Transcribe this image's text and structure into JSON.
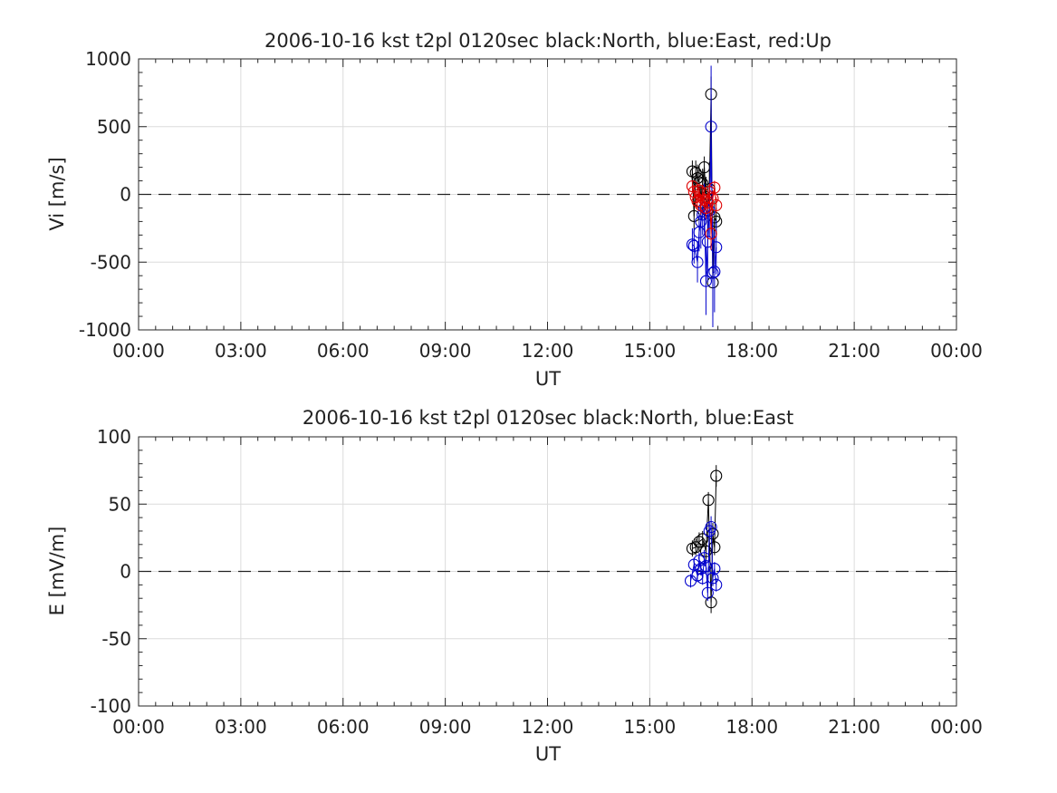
{
  "chart_data": [
    {
      "type": "scatter",
      "title": "2006-10-16 kst t2pl 0120sec black:North, blue:East, red:Up",
      "xlabel": "UT",
      "ylabel": "Vi [m/s]",
      "xlim": [
        0,
        24
      ],
      "ylim": [
        -1000,
        1000
      ],
      "x_ticks": [
        "00:00",
        "03:00",
        "06:00",
        "09:00",
        "12:00",
        "15:00",
        "18:00",
        "21:00",
        "00:00"
      ],
      "y_ticks": [
        "1000",
        "500",
        "0",
        "-500",
        "-1000"
      ],
      "y_tick_values": [
        1000,
        500,
        0,
        -500,
        -1000
      ],
      "grid": true,
      "zero_line": "dashed",
      "series": [
        {
          "color": "#000000",
          "x": [
            16.25,
            16.3,
            16.35,
            16.4,
            16.45,
            16.5,
            16.55,
            16.6,
            16.65,
            16.7,
            16.75,
            16.8,
            16.85,
            16.9,
            16.95
          ],
          "y": [
            170,
            -160,
            160,
            120,
            90,
            -60,
            80,
            200,
            -20,
            -120,
            40,
            740,
            -650,
            -170,
            -200
          ],
          "err": [
            80,
            100,
            90,
            100,
            120,
            130,
            110,
            80,
            150,
            180,
            200,
            130,
            250,
            120,
            100
          ]
        },
        {
          "color": "#0000cc",
          "x": [
            16.25,
            16.3,
            16.4,
            16.45,
            16.5,
            16.55,
            16.6,
            16.65,
            16.7,
            16.75,
            16.8,
            16.85,
            16.9,
            16.95
          ],
          "y": [
            -370,
            -380,
            -500,
            -280,
            -200,
            -150,
            -100,
            -640,
            -350,
            -120,
            500,
            -580,
            -570,
            -390
          ],
          "err": [
            120,
            130,
            150,
            140,
            200,
            150,
            180,
            250,
            300,
            200,
            450,
            400,
            300,
            200
          ]
        },
        {
          "color": "#dd0000",
          "x": [
            16.25,
            16.3,
            16.35,
            16.4,
            16.45,
            16.5,
            16.55,
            16.6,
            16.65,
            16.7,
            16.75,
            16.8,
            16.85,
            16.9,
            16.95
          ],
          "y": [
            60,
            20,
            -20,
            -50,
            30,
            -80,
            10,
            -40,
            -100,
            -60,
            20,
            -290,
            -30,
            50,
            -80
          ],
          "err": [
            40,
            50,
            40,
            60,
            50,
            70,
            60,
            60,
            80,
            70,
            60,
            120,
            60,
            50,
            60
          ]
        }
      ]
    },
    {
      "type": "scatter",
      "title": "2006-10-16 kst t2pl 0120sec black:North, blue:East",
      "xlabel": "UT",
      "ylabel": "E [mV/m]",
      "xlim": [
        0,
        24
      ],
      "ylim": [
        -100,
        100
      ],
      "x_ticks": [
        "00:00",
        "03:00",
        "06:00",
        "09:00",
        "12:00",
        "15:00",
        "18:00",
        "21:00",
        "00:00"
      ],
      "y_ticks": [
        "100",
        "50",
        "0",
        "-50",
        "-100"
      ],
      "y_tick_values": [
        100,
        50,
        0,
        -50,
        -100
      ],
      "grid": true,
      "zero_line": "dashed",
      "series": [
        {
          "color": "#000000",
          "x": [
            16.25,
            16.35,
            16.45,
            16.55,
            16.65,
            16.72,
            16.8,
            16.85,
            16.9,
            16.95
          ],
          "y": [
            17,
            18,
            22,
            24,
            15,
            53,
            -23,
            28,
            18,
            71
          ],
          "err": [
            6,
            6,
            7,
            6,
            8,
            6,
            8,
            8,
            6,
            8
          ]
        },
        {
          "color": "#0000cc",
          "x": [
            16.2,
            16.3,
            16.4,
            16.45,
            16.5,
            16.55,
            16.6,
            16.65,
            16.7,
            16.75,
            16.8,
            16.85,
            16.9,
            16.95
          ],
          "y": [
            -7,
            5,
            -3,
            8,
            2,
            -5,
            10,
            4,
            -16,
            30,
            33,
            -5,
            2,
            -10
          ],
          "err": [
            5,
            5,
            5,
            6,
            5,
            5,
            6,
            5,
            6,
            7,
            8,
            6,
            5,
            5
          ]
        }
      ]
    }
  ]
}
